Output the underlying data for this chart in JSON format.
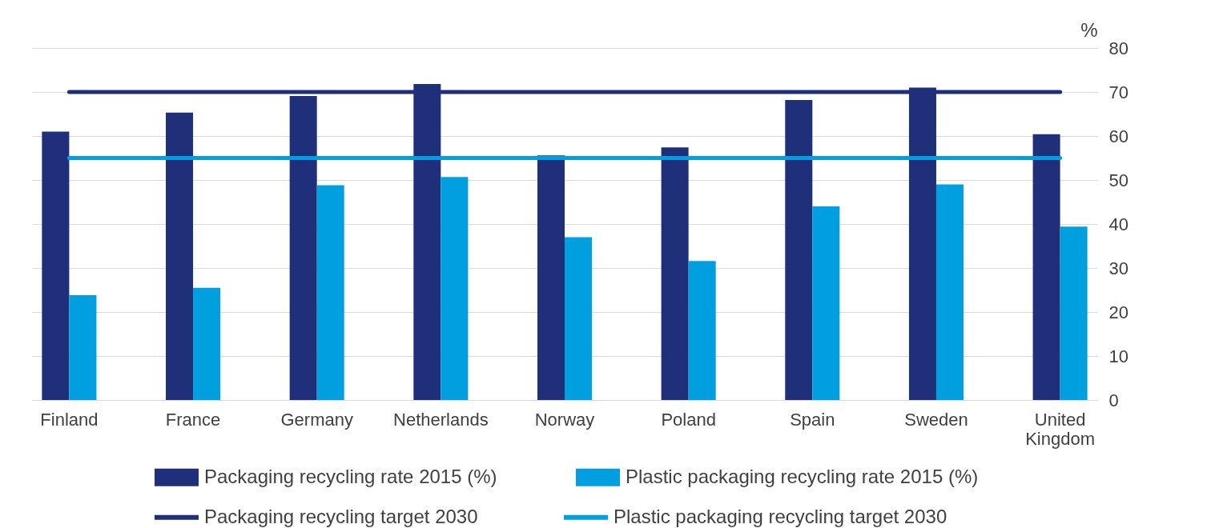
{
  "chart_data": {
    "type": "bar",
    "ylabel": "%",
    "categories": [
      "Finland",
      "France",
      "Germany",
      "Netherlands",
      "Norway",
      "Poland",
      "Spain",
      "Sweden",
      "United Kingdom"
    ],
    "series": [
      {
        "name": "Packaging recycling rate 2015 (%)",
        "color": "#1f2f7a",
        "values": [
          61,
          65.3,
          69.1,
          71.8,
          55.6,
          57.4,
          68.2,
          71,
          60.4
        ]
      },
      {
        "name": "Plastic packaging recycling rate 2015 (%)",
        "color": "#00a0e0",
        "values": [
          23.8,
          25.5,
          48.8,
          50.7,
          37,
          31.6,
          44,
          49,
          39.4
        ]
      },
      {
        "name": "Packaging recycling target 2030",
        "type": "line",
        "color": "#1f2f7a",
        "values": [
          70,
          70,
          70,
          70,
          70,
          70,
          70,
          70,
          70
        ]
      },
      {
        "name": "Plastic packaging recycling target 2030",
        "type": "line",
        "color": "#00a0e0",
        "values": [
          55,
          55,
          55,
          55,
          55,
          55,
          55,
          55,
          55
        ]
      }
    ],
    "ylim": [
      0,
      80
    ],
    "yticks": [
      0,
      10,
      20,
      30,
      40,
      50,
      60,
      70,
      80
    ],
    "grid": "y",
    "legend": "bottom"
  }
}
